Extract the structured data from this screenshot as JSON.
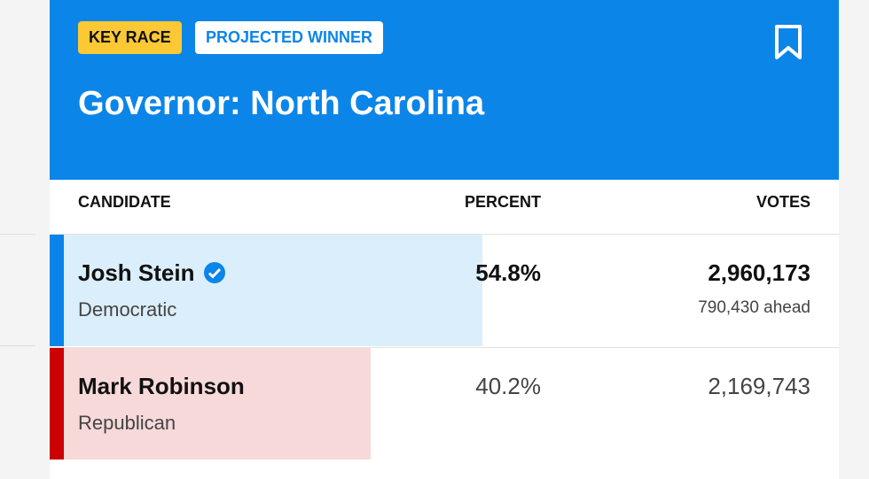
{
  "header": {
    "badges": [
      "KEY RACE",
      "PROJECTED WINNER"
    ],
    "title": "Governor: North Carolina"
  },
  "table": {
    "columns": [
      "CANDIDATE",
      "PERCENT",
      "VOTES"
    ],
    "rows": [
      {
        "name": "Josh Stein",
        "party": "Democratic",
        "percent": 54.8,
        "percent_label": "54.8%",
        "votes": "2,960,173",
        "margin": "790,430 ahead",
        "color": "#0a84e8",
        "bar_color": "#dbeefb"
      },
      {
        "name": "Mark Robinson",
        "party": "Republican",
        "percent": 40.2,
        "percent_label": "40.2%",
        "votes": "2,169,743",
        "color": "#cc0000",
        "bar_color": "#f7d9d9"
      }
    ]
  }
}
